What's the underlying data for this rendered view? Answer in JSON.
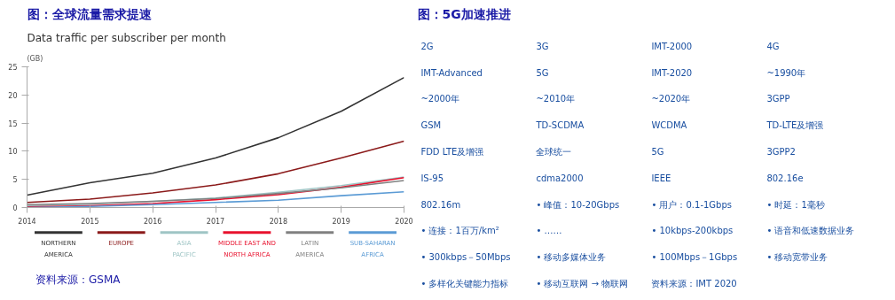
{
  "chart_data": [
    {
      "type": "line",
      "title": "图：全球流量需求提速",
      "subtitle": "Data traffic per subscriber per month",
      "ylabel": "(GB)",
      "x": [
        2014,
        2015,
        2016,
        2017,
        2018,
        2019,
        2020
      ],
      "xlim": [
        2014,
        2020
      ],
      "xticks": [
        2014,
        2015,
        2016,
        2017,
        2018,
        2019,
        2020
      ],
      "ylim": [
        0,
        25
      ],
      "yticks": [
        0,
        5,
        10,
        15,
        20,
        25
      ],
      "grid": false,
      "legend": "bottom",
      "marker": "none",
      "line_style": "solid",
      "series": [
        {
          "name": "NORTHERN AMERICA",
          "color": "#333333",
          "values": [
            2.2,
            4.4,
            6.1,
            8.8,
            12.4,
            17.1,
            23.1
          ]
        },
        {
          "name": "EUROPE",
          "color": "#8b1a1a",
          "values": [
            0.9,
            1.5,
            2.6,
            4.0,
            6.0,
            8.8,
            11.8
          ]
        },
        {
          "name": "ASIA PACIFIC",
          "color": "#9fc5c5",
          "values": [
            0.3,
            0.6,
            1.1,
            1.7,
            2.7,
            3.9,
            5.4
          ]
        },
        {
          "name": "MIDDLE EAST AND NORTH AFRICA",
          "color": "#e8112d",
          "values": [
            0.1,
            0.3,
            0.7,
            1.4,
            2.3,
            3.6,
            5.3
          ]
        },
        {
          "name": "LATIN AMERICA",
          "color": "#808080",
          "values": [
            0.5,
            0.7,
            1.1,
            1.6,
            2.5,
            3.5,
            4.8
          ]
        },
        {
          "name": "SUB-SAHARAN AFRICA",
          "color": "#5b9bd5",
          "values": [
            0.0,
            0.2,
            0.5,
            0.9,
            1.3,
            2.1,
            2.8
          ]
        }
      ],
      "annotations": [
        "资料来源：GSMA"
      ]
    },
    {
      "type": "other",
      "title": "图：5G加速推进",
      "annotations": [
        "2G",
        "3G",
        "IMT-2000",
        "4G",
        "IMT-Advanced",
        "5G",
        "IMT-2020",
        "~1990年",
        "~2000年",
        "~2010年",
        "~2020年",
        "3GPP",
        "GSM",
        "TD-SCDMA",
        "WCDMA",
        "TD-LTE及增强",
        "FDD LTE及增强",
        "全球统一",
        "5G",
        "3GPP2",
        "IS-95",
        "cdma2000",
        "IEEE",
        "802.16e",
        "802.16m",
        "• 峰值：10-20Gbps",
        "• 用户：0.1-1Gbps",
        "• 时延：1毫秒",
        "• 连接：1百万/km²",
        "• ……",
        "• 10kbps-200kbps",
        "• 语音和低速数据业务",
        "• 300kbps－50Mbps",
        "• 移动多媒体业务",
        "• 100Mbps－1Gbps",
        "• 移动宽带业务",
        "• 多样化关键能力指标",
        "• 移动互联网 → 物联网",
        "资料来源：IMT 2020"
      ]
    }
  ]
}
